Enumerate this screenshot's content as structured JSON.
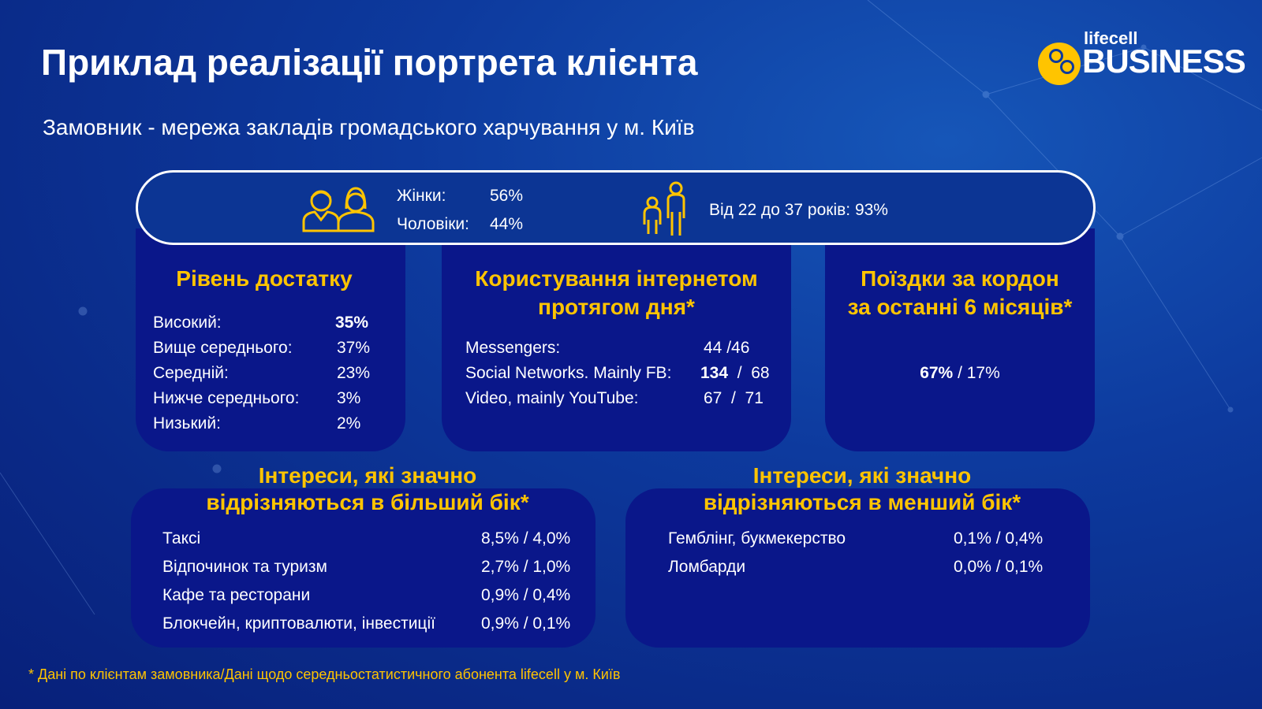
{
  "title": "Приклад реалізації портрета клієнта",
  "subtitle": "Замовник - мережа закладів громадського харчування у м. Київ",
  "logo": {
    "top": "lifecell",
    "bottom": "BUSINESS"
  },
  "gender": {
    "women_label": "Жінки:",
    "women_value": "56%",
    "men_label": "Чоловіки:",
    "men_value": "44%"
  },
  "age": {
    "text": "Від 22 до 37 років: 93%"
  },
  "income": {
    "heading": "Рівень достатку",
    "rows": [
      {
        "label": "Високий:",
        "value": "35%"
      },
      {
        "label": "Вище середнього:",
        "value": "37%"
      },
      {
        "label": "Середній:",
        "value": "23%"
      },
      {
        "label": "Нижче середнього:",
        "value": "3%"
      },
      {
        "label": "Низький:",
        "value": "2%"
      }
    ]
  },
  "internet": {
    "heading1": "Користування інтернетом",
    "heading2": "протягом дня*",
    "rows": [
      {
        "label": "Messengers:",
        "a": "44",
        "b": " /46"
      },
      {
        "label": "Social Networks. Mainly FB:",
        "a": "134",
        "b": "  /  68"
      },
      {
        "label": "Video, mainly YouTube:",
        "a": "67",
        "b": "  /  71"
      }
    ]
  },
  "travel": {
    "heading1": "Поїздки за кордон",
    "heading2": "за останні 6 місяців*",
    "a": "67%",
    "b": " / 17%"
  },
  "more": {
    "heading1": "Інтереси, які значно",
    "heading2": "відрізняються в більший бік*",
    "rows": [
      {
        "label": "Таксі",
        "value": "8,5% / 4,0%"
      },
      {
        "label": "Відпочинок та туризм",
        "value": "2,7% / 1,0%"
      },
      {
        "label": "Кафе та ресторани",
        "value": "0,9% / 0,4%"
      },
      {
        "label": "Блокчейн, криптовалюти, інвестиції",
        "value": "0,9% / 0,1%"
      }
    ]
  },
  "less": {
    "heading1": "Інтереси, які значно",
    "heading2": "відрізняються в менший бік*",
    "rows": [
      {
        "label": "Гемблінг, букмекерство",
        "value": "0,1% / 0,4%"
      },
      {
        "label": "Ломбарди",
        "value": "0,0% / 0,1%"
      }
    ]
  },
  "footnote": "* Дані по клієнтам замовника/Дані щодо середньостатистичного абонента lifecell у м. Київ",
  "colors": {
    "accent": "#ffc400",
    "card": "#0a178a"
  }
}
